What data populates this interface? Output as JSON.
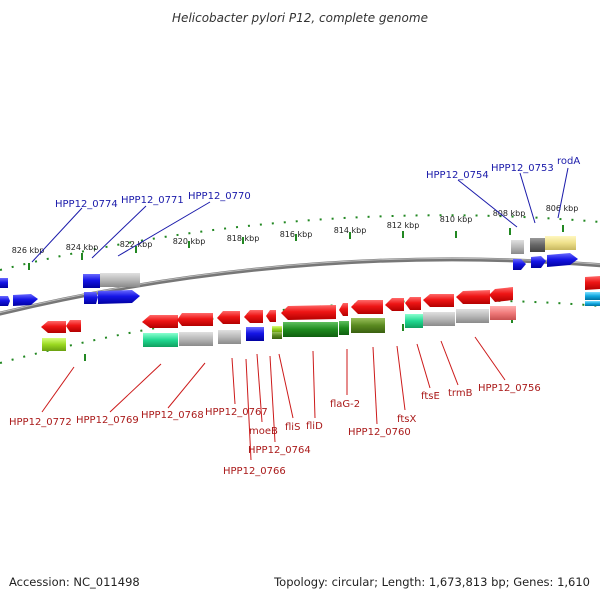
{
  "title": "Helicobacter pylori P12, complete genome",
  "footer": {
    "accession": "Accession: NC_011498",
    "topology": "Topology: circular; Length: 1,673,813 bp; Genes: 1,610"
  },
  "colors": {
    "backbone": "#777777",
    "tick": "#228822",
    "forward_gene": "#1515e6",
    "reverse_gene": "#ee1515",
    "top_label": "#1a1aaa",
    "bottom_label": "#aa1a1a"
  },
  "ticks": [
    {
      "label": "826 kbp"
    },
    {
      "label": "824 kbp"
    },
    {
      "label": "822 kbp"
    },
    {
      "label": "820 kbp"
    },
    {
      "label": "818 kbp"
    },
    {
      "label": "816 kbp"
    },
    {
      "label": "814 kbp"
    },
    {
      "label": "812 kbp"
    },
    {
      "label": "810 kbp"
    },
    {
      "label": "808 kbp"
    },
    {
      "label": "806 kbp"
    }
  ],
  "top_labels": [
    {
      "text": "HPP12_0774"
    },
    {
      "text": "HPP12_0771"
    },
    {
      "text": "HPP12_0770"
    },
    {
      "text": "HPP12_0754"
    },
    {
      "text": "HPP12_0753"
    },
    {
      "text": "rodA"
    }
  ],
  "bottom_labels": [
    {
      "text": "HPP12_0772"
    },
    {
      "text": "HPP12_0769"
    },
    {
      "text": "HPP12_0768"
    },
    {
      "text": "HPP12_0767"
    },
    {
      "text": "moeB"
    },
    {
      "text": "HPP12_0764"
    },
    {
      "text": "HPP12_0766"
    },
    {
      "text": "fliS"
    },
    {
      "text": "fliD"
    },
    {
      "text": "flaG-2"
    },
    {
      "text": "HPP12_0760"
    },
    {
      "text": "ftsX"
    },
    {
      "text": "ftsE"
    },
    {
      "text": "trmB"
    },
    {
      "text": "HPP12_0756"
    }
  ]
}
